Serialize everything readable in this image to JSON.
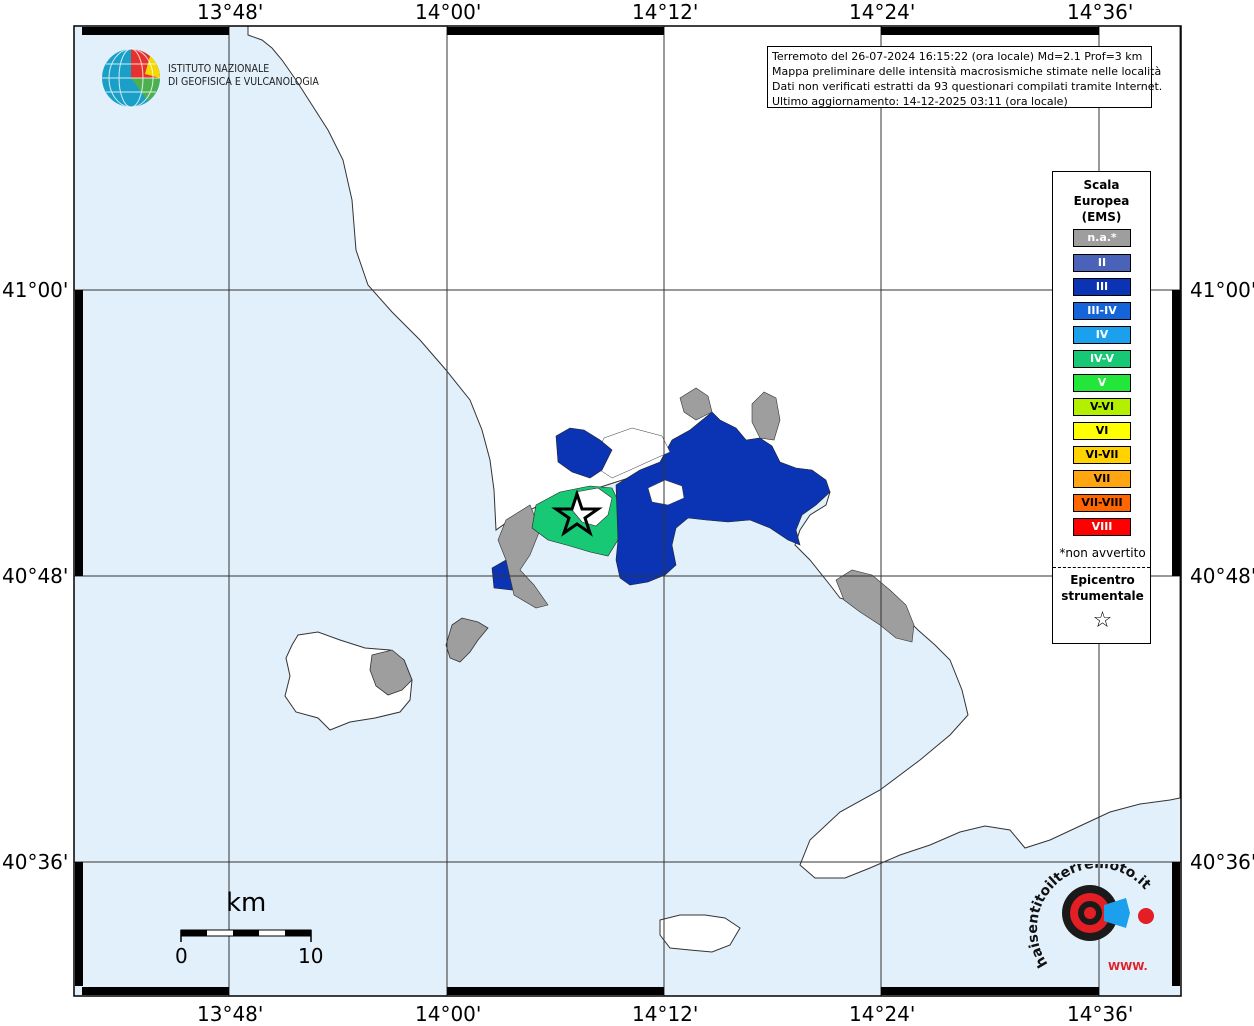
{
  "map": {
    "lon_labels": [
      "13°48'",
      "14°00'",
      "14°12'",
      "14°24'",
      "14°36'"
    ],
    "lat_labels": [
      "41°00'",
      "40°48'",
      "40°36'"
    ],
    "colors": {
      "sea": "#e1f0fb",
      "land": "#ffffff",
      "na": "#9e9e9e",
      "III": "#0b34b5",
      "IV-V": "#17c875"
    }
  },
  "info": {
    "line1": "Terremoto del 26-07-2024 16:15:22 (ora locale) Md=2.1 Prof=3 km",
    "line2": "Mappa preliminare delle intensità macrosismiche stimate nelle località",
    "line3": "Dati non verificati estratti da 93 questionari compilati tramite Internet.",
    "line4": "Ultimo aggiornamento: 14-12-2025 03:11 (ora locale)"
  },
  "logo": {
    "line1": "ISTITUTO NAZIONALE",
    "line2": "DI GEOFISICA E VULCANOLOGIA"
  },
  "legend": {
    "title1": "Scala",
    "title2": "Europea",
    "title3": "(EMS)",
    "items": [
      {
        "label": "n.a.*",
        "color": "#9e9e9e"
      },
      {
        "label": "II",
        "color": "#4a63b8"
      },
      {
        "label": "III",
        "color": "#0b34b5"
      },
      {
        "label": "III-IV",
        "color": "#1565d8"
      },
      {
        "label": "IV",
        "color": "#1aa0ec"
      },
      {
        "label": "IV-V",
        "color": "#17c875"
      },
      {
        "label": "V",
        "color": "#22e63a"
      },
      {
        "label": "V-VI",
        "color": "#b3f000"
      },
      {
        "label": "VI",
        "color": "#ffff00"
      },
      {
        "label": "VI-VII",
        "color": "#ffd200"
      },
      {
        "label": "VII",
        "color": "#ffa512"
      },
      {
        "label": "VII-VIII",
        "color": "#ff6600"
      },
      {
        "label": "VIII",
        "color": "#ff0000"
      }
    ],
    "note": "*non avvertito",
    "epicenter1": "Epicentro",
    "epicenter2": "strumentale",
    "epicenter_symbol": "☆"
  },
  "scalebar": {
    "unit": "km",
    "min": "0",
    "max": "10"
  },
  "brand": {
    "text": "haisentitoilterremoto.it",
    "url": "WWW."
  }
}
